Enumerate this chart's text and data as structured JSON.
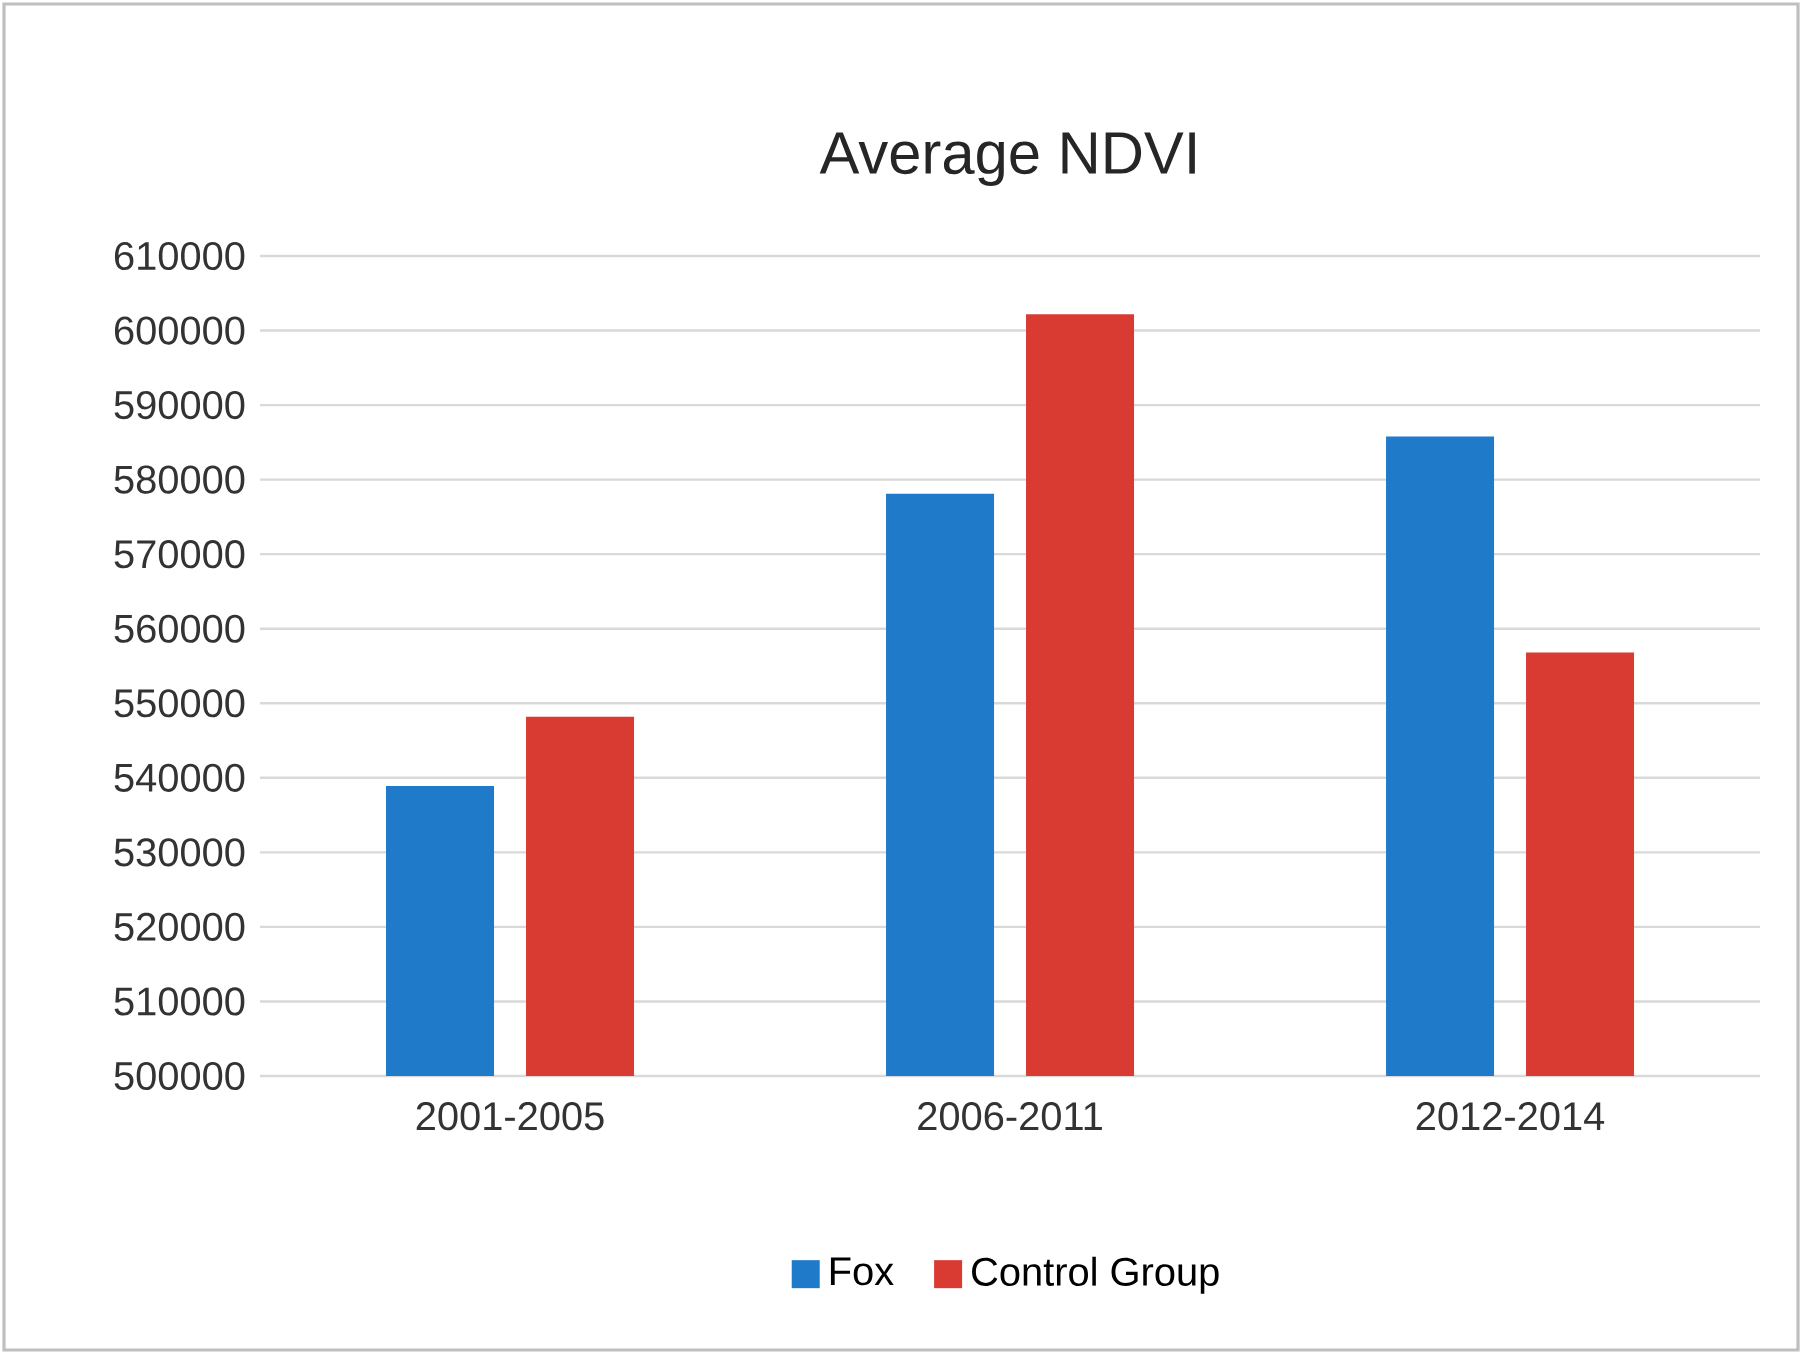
{
  "chart_data": {
    "type": "bar",
    "title": "Average NDVI",
    "categories": [
      "2001-2005",
      "2006-2011",
      "2012-2014"
    ],
    "series": [
      {
        "name": "Fox",
        "color": "#1f7bc9",
        "values": [
          538900,
          578100,
          585800
        ]
      },
      {
        "name": "Control Group",
        "color": "#d93a32",
        "values": [
          548200,
          602200,
          556800
        ]
      }
    ],
    "ylim": [
      500000,
      610000
    ],
    "yticks": [
      500000,
      510000,
      520000,
      530000,
      540000,
      550000,
      560000,
      570000,
      580000,
      590000,
      600000,
      610000
    ],
    "grid": "y",
    "legend": "bottom"
  }
}
